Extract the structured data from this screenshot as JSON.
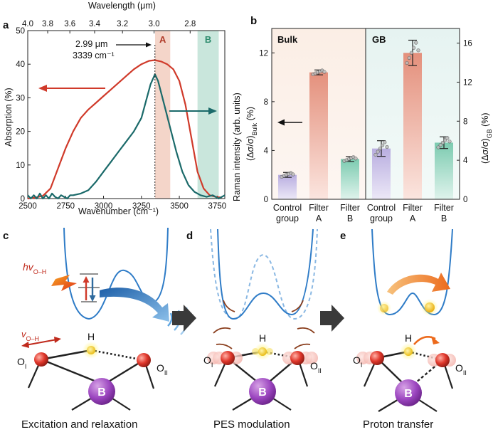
{
  "panels": {
    "a": "a",
    "b": "b",
    "c": "c",
    "d": "d",
    "e": "e"
  },
  "chart_data": [
    {
      "type": "line",
      "xlabel": "Wavenumber (cm⁻¹)",
      "ylabel": "Absorption (%)",
      "top_axis_label": "Wavelength (μm)",
      "xlim": [
        2500,
        3800
      ],
      "ylim": [
        0,
        50
      ],
      "x_ticks": [
        "2500",
        "2750",
        "3000",
        "3250",
        "3500",
        "3750"
      ],
      "y_ticks": [
        "0",
        "10",
        "20",
        "30",
        "40",
        "50"
      ],
      "top_ticks": [
        "4.0",
        "3.8",
        "3.6",
        "3.4",
        "3.2",
        "3.0",
        "2.8"
      ],
      "annotation": {
        "line1": "2.99 μm",
        "line2": "3339 cm⁻¹"
      },
      "bands": [
        {
          "label": "A",
          "range": [
            3340,
            3440
          ],
          "color": "#f4d5c9"
        },
        {
          "label": "B",
          "range": [
            3620,
            3760
          ],
          "color": "#c9e6dc"
        }
      ],
      "series": [
        {
          "name": "red",
          "color": "#d03a2a",
          "x": [
            2500,
            2550,
            2600,
            2650,
            2700,
            2750,
            2800,
            2850,
            2900,
            2950,
            3000,
            3050,
            3100,
            3150,
            3200,
            3250,
            3300,
            3339,
            3380,
            3420,
            3460,
            3500,
            3540,
            3580,
            3620,
            3660,
            3700,
            3740,
            3780
          ],
          "values": [
            0,
            0.3,
            0.8,
            3,
            9,
            15,
            20,
            24,
            26.5,
            28.5,
            30.5,
            32.5,
            34.5,
            36.5,
            38.5,
            40,
            41,
            41.2,
            40.8,
            40,
            38.5,
            35,
            28,
            18,
            8,
            3,
            1,
            0.5,
            0.3
          ]
        },
        {
          "name": "teal",
          "color": "#1b6a6a",
          "x": [
            2500,
            2520,
            2540,
            2560,
            2580,
            2600,
            2620,
            2640,
            2660,
            2680,
            2700,
            2720,
            2740,
            2760,
            2780,
            2800,
            2850,
            2900,
            2950,
            3000,
            3050,
            3100,
            3150,
            3200,
            3250,
            3280,
            3310,
            3339,
            3360,
            3400,
            3440,
            3480,
            3520,
            3560,
            3600,
            3640,
            3680,
            3720,
            3760,
            3800
          ],
          "values": [
            1,
            0,
            1,
            0,
            1.5,
            0,
            1,
            0,
            1.5,
            0.5,
            0,
            1,
            0.5,
            0,
            1,
            1,
            1.5,
            2.5,
            5,
            8,
            11,
            14,
            17,
            20,
            24,
            29,
            34,
            37,
            35,
            28,
            21,
            14,
            8,
            4,
            2,
            1,
            0.5,
            1,
            0,
            1
          ]
        }
      ]
    },
    {
      "type": "bar",
      "ylabel_left": "Raman intensity (arb. units)",
      "ylabel_left2": "(Δσ/σ)",
      "ylabel_left2_sub": "Bulk",
      "ylabel_left2_unit": " (%)",
      "ylabel_right": "(Δσ/σ)",
      "ylabel_right_sub": "GB",
      "ylabel_right_unit": " (%)",
      "ylim_left": [
        0,
        14
      ],
      "ylim_right": [
        0,
        17.5
      ],
      "left_ticks": [
        "0",
        "4",
        "8",
        "12"
      ],
      "right_ticks": [
        "0",
        "4",
        "8",
        "12",
        "16"
      ],
      "group_labels": [
        "Bulk",
        "GB"
      ],
      "categories": [
        [
          "Control",
          "group"
        ],
        [
          "Filter",
          "A"
        ],
        [
          "Filter",
          "B"
        ],
        [
          "Control",
          "group"
        ],
        [
          "Filter",
          "A"
        ],
        [
          "Filter",
          "B"
        ]
      ],
      "values": [
        2.0,
        10.4,
        3.3,
        5.2,
        15.0,
        5.8
      ],
      "errors": [
        0.2,
        0.2,
        0.2,
        0.8,
        1.3,
        0.6
      ],
      "axis": [
        "left",
        "left",
        "left",
        "right",
        "right",
        "right"
      ],
      "colors": [
        "#a79ad2",
        "#e59a87",
        "#8fd0b9",
        "#a79ad2",
        "#e59a87",
        "#8fd0b9"
      ]
    }
  ],
  "diagrams": {
    "c": {
      "photon": "hv",
      "photon_sub": "O–H",
      "vib": "v",
      "vib_sub": "O–H",
      "h": "H",
      "o1": "O",
      "o1_sub": "I",
      "o2": "O",
      "o2_sub": "II",
      "b": "B",
      "caption": "Excitation and relaxation"
    },
    "d": {
      "h": "H",
      "o1": "O",
      "o1_sub": "I",
      "o2": "O",
      "o2_sub": "II",
      "b": "B",
      "caption": "PES modulation"
    },
    "e": {
      "h": "H",
      "o1": "O",
      "o1_sub": "I",
      "o2": "O",
      "o2_sub": "II",
      "b": "B",
      "caption": "Proton transfer"
    }
  }
}
